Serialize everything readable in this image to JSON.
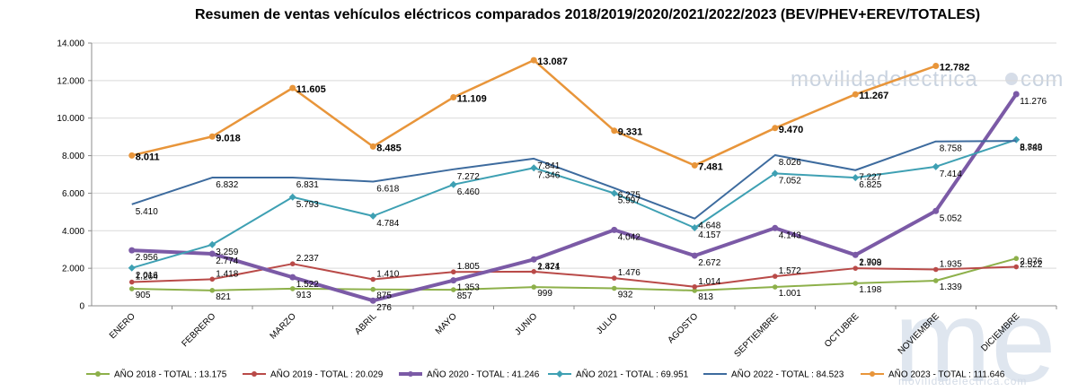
{
  "chart_data": {
    "type": "line",
    "title": "Resumen de ventas vehículos eléctricos comparados 2018/2019/2020/2021/2022/2023  (BEV/PHEV+EREV/TOTALES)",
    "categories": [
      "ENERO",
      "FEBRERO",
      "MARZO",
      "ABRIL",
      "MAYO",
      "JUNIO",
      "JULIO",
      "AGOSTO",
      "SEPTIEMBRE",
      "OCTUBRE",
      "NOVIEMBRE",
      "DICIEMBRE"
    ],
    "ylim": [
      0,
      14000
    ],
    "yticks": [
      "0",
      "2.000",
      "4.000",
      "6.000",
      "8.000",
      "10.000",
      "12.000",
      "14.000"
    ],
    "grid": true,
    "legend_position": "bottom",
    "series": [
      {
        "name": "AÑO 2018 - TOTAL : 13.175",
        "color": "#8db04a",
        "marker": "circle",
        "values": [
          905,
          821,
          913,
          875,
          857,
          999,
          932,
          813,
          1001,
          1198,
          1339,
          2522
        ],
        "labels": [
          "905",
          "821",
          "913",
          "875",
          "857",
          "999",
          "932",
          "813",
          "1.001",
          "1.198",
          "1.339",
          "2.522"
        ]
      },
      {
        "name": "AÑO 2019 - TOTAL : 20.029",
        "color": "#b94a48",
        "marker": "circle",
        "values": [
          1264,
          1418,
          2237,
          1410,
          1805,
          1824,
          1476,
          1014,
          1572,
          1998,
          1935,
          2076
        ],
        "labels": [
          "1.264",
          "1.418",
          "2.237",
          "1.410",
          "1.805",
          "1.824",
          "1.476",
          "1.014",
          "1.572",
          "1.998",
          "1.935",
          "2.076"
        ]
      },
      {
        "name": "AÑO 2020 - TOTAL : 41.246",
        "color": "#7b5aa6",
        "marker": "circle",
        "values": [
          2956,
          2774,
          1522,
          276,
          1353,
          2471,
          4042,
          2672,
          4143,
          2709,
          5052,
          11276
        ],
        "labels": [
          "2.956",
          "2.774",
          "1.522",
          "276",
          "1.353",
          "2.471",
          "4.042",
          "2.672",
          "4.143",
          "2.709",
          "5.052",
          "11.276"
        ]
      },
      {
        "name": "AÑO 2021 - TOTAL : 69.951",
        "color": "#3ea0b3",
        "marker": "diamond",
        "values": [
          2016,
          3259,
          5793,
          4784,
          6460,
          7346,
          5997,
          4157,
          7052,
          6825,
          7414,
          8849
        ],
        "labels": [
          "2.016",
          "3.259",
          "5.793",
          "4.784",
          "6.460",
          "7.346",
          "5.997",
          "4.157",
          "7.052",
          "6.825",
          "7.414",
          "8.849"
        ]
      },
      {
        "name": "AÑO 2022 - TOTAL : 84.523",
        "color": "#3d6b9e",
        "marker": "none",
        "values": [
          5410,
          6832,
          6831,
          6618,
          7272,
          7841,
          6275,
          4648,
          8026,
          7227,
          8758,
          8786
        ],
        "labels": [
          "5.410",
          "6.832",
          "6.831",
          "6.618",
          "7.272",
          "7.841",
          "6.275",
          "4.648",
          "8.026",
          "7.227",
          "8.758",
          "8.786"
        ]
      },
      {
        "name": "AÑO 2023 - TOTAL : 111.646",
        "color": "#e8953a",
        "marker": "circle",
        "values": [
          8011,
          9018,
          11605,
          8485,
          11109,
          13087,
          9331,
          7481,
          9470,
          11267,
          12782,
          null
        ],
        "labels": [
          "8.011",
          "9.018",
          "11.605",
          "8.485",
          "11.109",
          "13.087",
          "9.331",
          "7.481",
          "9.470",
          "11.267",
          "12.782",
          ""
        ]
      }
    ]
  },
  "watermark": {
    "text": "movilidadelectrica",
    "suffix": "com",
    "logo": "me",
    "bottom_text": "movilidadelectrica.com"
  }
}
